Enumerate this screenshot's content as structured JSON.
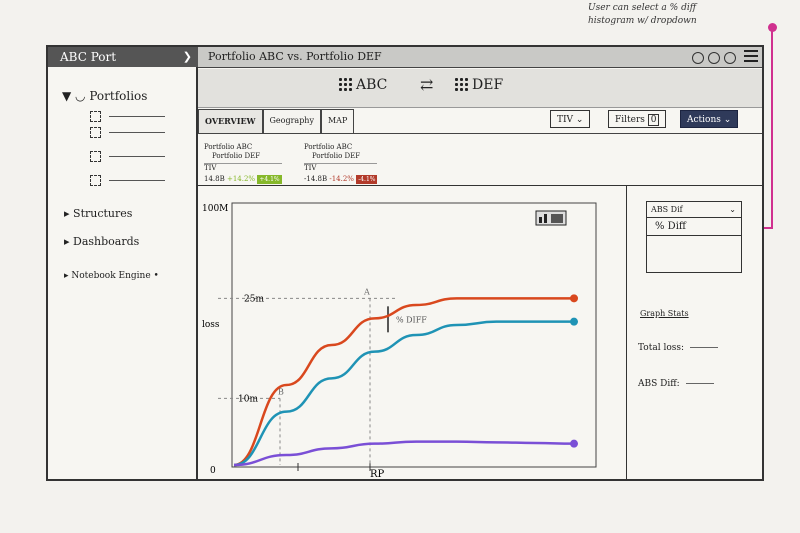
{
  "annotation": {
    "line1": "User can select a % diff",
    "line2": "histogram w/ dropdown"
  },
  "app": {
    "title": "ABC Port",
    "chevron": "❯"
  },
  "sidebar": {
    "portfolios_label": "Portfolios",
    "portfolio_count": 4,
    "items": [
      "Structures",
      "Dashboards",
      "Notebook Engine"
    ]
  },
  "header": {
    "title": "Portfolio ABC vs. Portfolio DEF"
  },
  "compare": {
    "left": "ABC",
    "right": "DEF",
    "arrow": "⇄"
  },
  "tabs": [
    "OVERVIEW",
    "Geography",
    "MAP"
  ],
  "controls": {
    "tiv": "TIV",
    "filters": "Filters",
    "filters_count": "0",
    "actions": "Actions"
  },
  "summary_cards": [
    {
      "title1": "Portfolio ABC",
      "title2": "Portfolio DEF",
      "label": "TIV",
      "value": "14.8B",
      "delta": "+14.2%",
      "badge": "+4.1%",
      "badge_color": "#86b82a"
    },
    {
      "title1": "Portfolio ABC",
      "title2": "Portfolio DEF",
      "label": "TIV",
      "value": "-14.8B",
      "delta": "-14.2%",
      "badge": "-4.1%",
      "badge_color": "#b23a2a"
    }
  ],
  "chart_data": {
    "type": "line",
    "xlabel": "RP",
    "ylabel": "loss",
    "y_top_label": "100M",
    "y_zero_label": "0",
    "annotations": [
      {
        "text": "25m",
        "y": 25
      },
      {
        "text": "10m",
        "y": 10
      },
      {
        "text": "A"
      },
      {
        "text": "B"
      },
      {
        "text": "% DIFF"
      }
    ],
    "series": [
      {
        "color": "#d9481e",
        "values": [
          0,
          12,
          18,
          22,
          24,
          25,
          25,
          25,
          25
        ]
      },
      {
        "color": "#1f93b5",
        "values": [
          0,
          8,
          13,
          17,
          19.5,
          21,
          21.5,
          21.5,
          21.5
        ]
      },
      {
        "color": "#7a4fd6",
        "values": [
          0,
          1.5,
          2.5,
          3.2,
          3.5,
          3.5,
          3.4,
          3.3,
          3.2
        ]
      }
    ],
    "grid": false
  },
  "right_panel": {
    "dropdown_value": "ABS Dif",
    "dropdown_option": "% Diff",
    "stats_title": "Graph Stats",
    "stats": [
      "Total loss:",
      "ABS Diff:"
    ]
  }
}
